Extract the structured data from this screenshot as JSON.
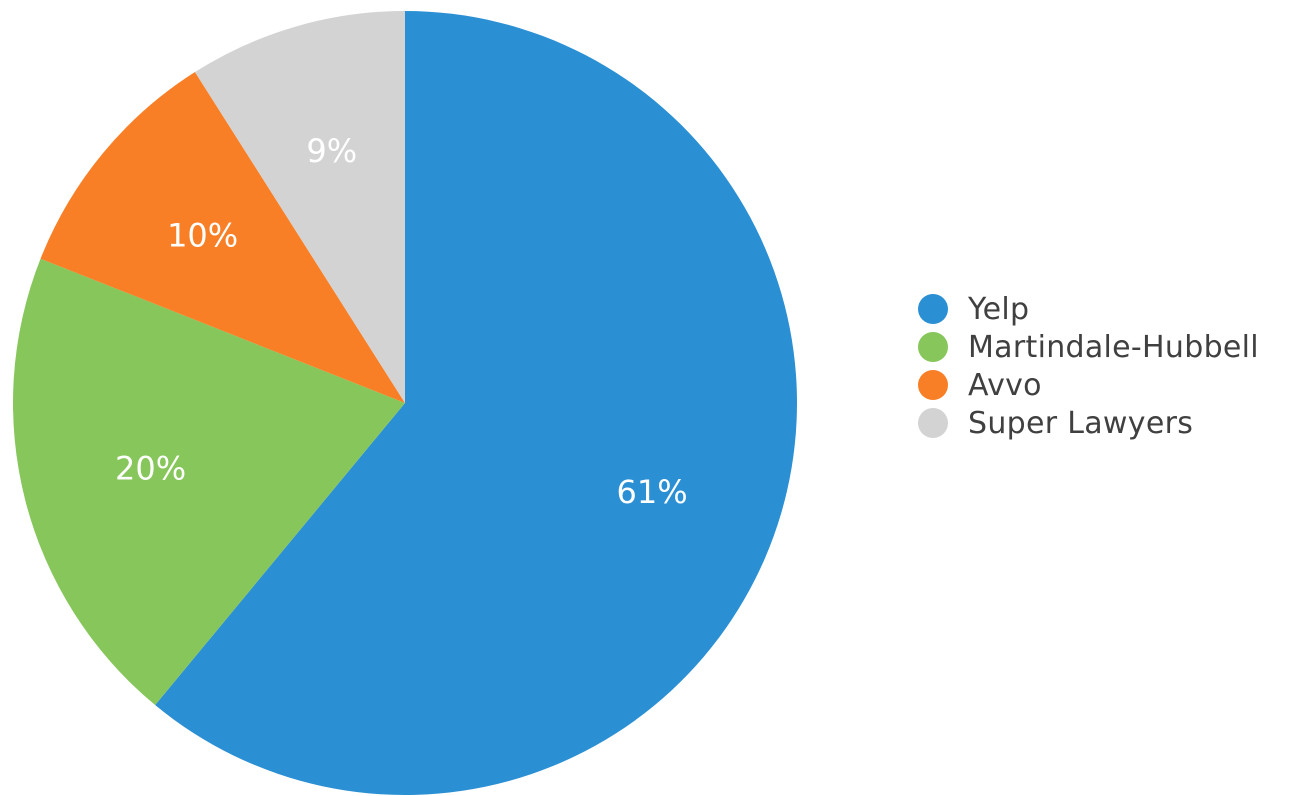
{
  "chart_data": {
    "type": "pie",
    "title": "",
    "slices": [
      {
        "name": "Yelp",
        "value": 61,
        "label": "61%",
        "color": "#2b8fd4"
      },
      {
        "name": "Martindale-Hubbell",
        "value": 20,
        "label": "20%",
        "color": "#86c65a"
      },
      {
        "name": "Avvo",
        "value": 10,
        "label": "10%",
        "color": "#f97f26"
      },
      {
        "name": "Super Lawyers",
        "value": 9,
        "label": "9%",
        "color": "#d3d3d3"
      }
    ],
    "legend": {
      "position": "right"
    }
  }
}
